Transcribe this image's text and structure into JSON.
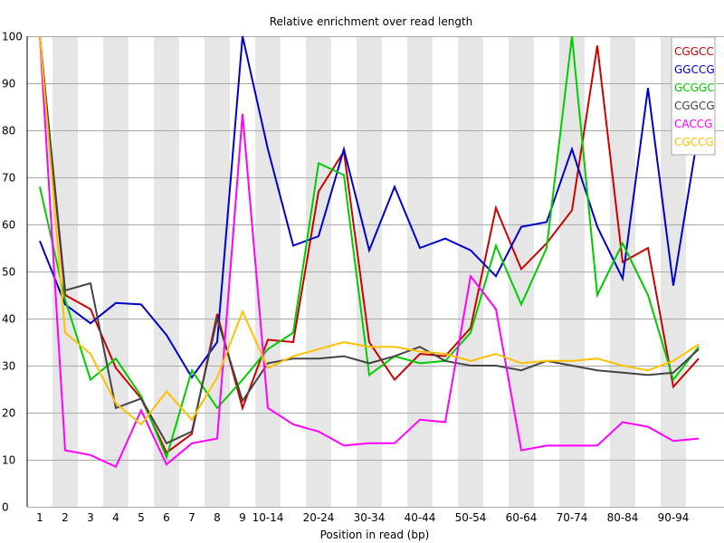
{
  "chart_data": {
    "type": "line",
    "title": "Relative enrichment over read length",
    "xlabel": "Position in read (bp)",
    "ylabel": "",
    "ylim": [
      0,
      100
    ],
    "yticks": [
      0,
      10,
      20,
      30,
      40,
      50,
      60,
      70,
      80,
      90,
      100
    ],
    "grid": true,
    "legend_position": "top-right",
    "categories": [
      "1",
      "2",
      "3",
      "4",
      "5",
      "6",
      "7",
      "8",
      "9",
      "10-14",
      "15-19",
      "20-24",
      "25-29",
      "30-34",
      "35-39",
      "40-44",
      "45-49",
      "50-54",
      "55-59",
      "60-64",
      "65-69",
      "70-74",
      "75-79",
      "80-84",
      "85-89",
      "90-94",
      "95-99"
    ],
    "xtick_labels": [
      "1",
      "2",
      "3",
      "4",
      "5",
      "6",
      "7",
      "8",
      "9",
      "10-14",
      "20-24",
      "30-34",
      "40-44",
      "50-54",
      "60-64",
      "70-74",
      "80-84",
      "90-94"
    ],
    "series": [
      {
        "name": "CGGCC",
        "color": "#cc0000",
        "values": [
          100,
          45,
          42,
          29.5,
          23,
          11.5,
          15.5,
          41,
          21,
          35.5,
          35,
          67,
          75.5,
          35,
          27,
          32.5,
          32,
          38,
          63.5,
          50.5,
          56,
          63,
          98,
          52,
          55,
          25.5,
          31.5
        ]
      },
      {
        "name": "GGCCG",
        "color": "#0000cc",
        "values": [
          56.5,
          43,
          39,
          43.3,
          43,
          36.5,
          27.5,
          35,
          100,
          76,
          55.5,
          57.5,
          76,
          54.5,
          68,
          55,
          57,
          54.5,
          49,
          59.5,
          60.5,
          76,
          59.5,
          48.5,
          89,
          47,
          80
        ]
      },
      {
        "name": "GCGGC",
        "color": "#00cc00",
        "values": [
          68,
          44,
          27,
          31.5,
          23.5,
          10.5,
          29,
          21,
          27,
          33.5,
          37,
          73,
          70.5,
          28,
          32,
          30.5,
          31,
          37,
          55.5,
          43,
          55,
          100,
          45,
          56,
          45,
          27,
          34
        ]
      },
      {
        "name": "CGGCG",
        "color": "#444444",
        "values": [
          100,
          46,
          47.5,
          21,
          23,
          13.5,
          16,
          40,
          22.5,
          30.5,
          31.5,
          31.5,
          32,
          30.5,
          32,
          34,
          31,
          30,
          30,
          29,
          31,
          30,
          29,
          28.5,
          28,
          28.5,
          33.5
        ]
      },
      {
        "name": "CACCG",
        "color": "#ff00ff",
        "values": [
          100,
          12,
          11,
          8.5,
          20.5,
          9,
          13.5,
          14.5,
          83.5,
          21,
          17.5,
          16,
          13,
          13.5,
          13.5,
          18.5,
          18,
          49,
          42,
          12,
          13,
          13,
          13,
          18,
          17,
          14,
          14.5
        ]
      },
      {
        "name": "CGCCG",
        "color": "#ffc000",
        "values": [
          100,
          37,
          32.5,
          22,
          17.5,
          24.5,
          18.5,
          27.5,
          41.5,
          29.5,
          32,
          33.5,
          35,
          34,
          34,
          33,
          32.5,
          31,
          32.5,
          30.5,
          31,
          31,
          31.5,
          30,
          29,
          31,
          34.5
        ]
      }
    ]
  },
  "colors": {
    "band": "#e6e6e6",
    "grid": "#aaaaaa",
    "axis": "#000000",
    "legend_border": "#aaaaaa"
  }
}
